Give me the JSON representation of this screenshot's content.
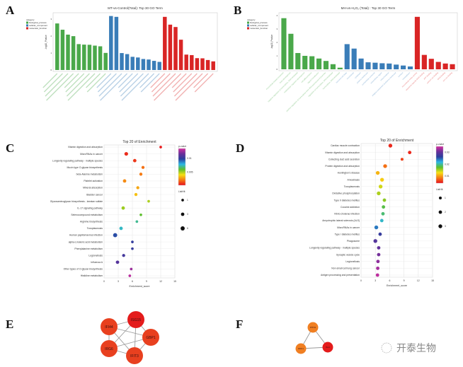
{
  "panels": {
    "A": "A",
    "B": "B",
    "C": "C",
    "D": "D",
    "E": "E",
    "F": "F"
  },
  "colors": {
    "biological_process": "#4aa84a",
    "cellular_component": "#3a7db8",
    "molecular_function": "#d92525"
  },
  "watermark": "开泰生物",
  "chart_data": [
    {
      "id": "A",
      "type": "bar",
      "title": "MT-vs-Control(Total): Top 30 GO Term",
      "ylabel": "-log10_Pvalue",
      "ylim": [
        0,
        3.3
      ],
      "yticks": [
        0,
        1,
        2,
        3
      ],
      "legend": {
        "title": "category",
        "placement": "top-left",
        "entries": [
          "biological_process",
          "cellular_component",
          "molecular_function"
        ]
      },
      "series": [
        {
          "name": "biological_process",
          "values": [
            2.75,
            2.38,
            2.09,
            2.0,
            1.53,
            1.5,
            1.49,
            1.44,
            1.4,
            1.01
          ]
        },
        {
          "name": "cellular_component",
          "values": [
            3.19,
            3.14,
            1.0,
            0.94,
            0.78,
            0.74,
            0.65,
            0.62,
            0.54,
            0.48
          ]
        },
        {
          "name": "molecular_function",
          "values": [
            3.14,
            2.68,
            2.54,
            1.79,
            0.91,
            0.88,
            0.7,
            0.69,
            0.59,
            0.51
          ]
        }
      ]
    },
    {
      "id": "B",
      "type": "bar",
      "title": "MH-vs-H₂O₂ (Total) : Top 30 GO Term",
      "ylabel": "-log10_Pvalue",
      "ylim": [
        0,
        4.1
      ],
      "yticks": [
        0,
        1,
        2,
        3,
        4
      ],
      "legend": {
        "title": "category",
        "placement": "top-left",
        "entries": [
          "biological_process",
          "cellular_component",
          "molecular_function"
        ]
      },
      "series": [
        {
          "name": "biological_process",
          "values": [
            3.8,
            2.64,
            1.21,
            1.0,
            0.97,
            0.8,
            0.62,
            0.38,
            0.12
          ],
          "categories": [
            "microtubule-based movement",
            "brain development",
            "negative regulation of transcription, DNA-templated",
            "multicellular organism development",
            "cell differentiation",
            "signal transduction",
            "positive regulation of transcription from RNA polymerase II promoter",
            "regulation of transcription, DNA-templated",
            "transcription, DNA-templated"
          ]
        },
        {
          "name": "cellular_component",
          "values": [
            1.87,
            1.54,
            0.8,
            0.52,
            0.49,
            0.45,
            0.43,
            0.35,
            0.28,
            0.21
          ],
          "categories": [
            "neuronal cell body",
            "microtubule",
            "cytoplasm",
            "plasma membrane",
            "extracellular exosome",
            "extracellular region",
            "mitochondrion",
            "integral component of plasma membrane",
            "nucleus",
            "nucleoplasm"
          ]
        },
        {
          "name": "molecular_function",
          "values": [
            3.9,
            1.07,
            0.78,
            0.55,
            0.43,
            0.38
          ],
          "categories": [
            "microtubule motor activity",
            "sequence-specific DNA binding",
            "ATP binding",
            "calcium ion binding",
            "DNA binding",
            "zinc ion binding"
          ]
        }
      ]
    },
    {
      "id": "C",
      "type": "scatter",
      "title": "Top 20 of  Enrichment",
      "xlabel": "Enrichment_score",
      "xlim": [
        0,
        15
      ],
      "xticks": [
        0,
        3,
        6,
        9,
        12,
        15
      ],
      "grid": true,
      "color_legend": {
        "title": "p-value",
        "range": [
          0.0003,
          0.0135
        ],
        "ticks": [
          0.005,
          0.01
        ]
      },
      "size_legend": {
        "title": "ListHit",
        "values": [
          1,
          3,
          6
        ]
      },
      "points": [
        {
          "term": "Vitamin digestion and absorption",
          "x": 12.0,
          "p": 0.0005,
          "hits": 1
        },
        {
          "term": "MicroRNAs in cancer",
          "x": 4.7,
          "p": 0.0008,
          "hits": 4
        },
        {
          "term": "Longevity regulating pathway - multiple species",
          "x": 6.5,
          "p": 0.001,
          "hits": 3
        },
        {
          "term": "Mucin type O-glycan biosynthesis",
          "x": 8.25,
          "p": 0.002,
          "hits": 2
        },
        {
          "term": "beta-Alanine metabolism",
          "x": 7.8,
          "p": 0.0022,
          "hits": 2
        },
        {
          "term": "Platelet activation",
          "x": 4.35,
          "p": 0.0025,
          "hits": 3
        },
        {
          "term": "Mineral absorption",
          "x": 7.15,
          "p": 0.003,
          "hits": 2
        },
        {
          "term": "Bladder cancer",
          "x": 6.75,
          "p": 0.0035,
          "hits": 2
        },
        {
          "term": "Glycosaminoglycan biosynthesis - keratan sulfate",
          "x": 9.45,
          "p": 0.005,
          "hits": 1
        },
        {
          "term": "IL-17 signaling pathway",
          "x": 4.05,
          "p": 0.0052,
          "hits": 3
        },
        {
          "term": "Selenocompound metabolism",
          "x": 7.8,
          "p": 0.006,
          "hits": 1
        },
        {
          "term": "Arginine biosynthesis",
          "x": 6.95,
          "p": 0.007,
          "hits": 1
        },
        {
          "term": "Toxoplasmosis",
          "x": 3.6,
          "p": 0.0075,
          "hits": 3
        },
        {
          "term": "Human papillomavirus infection",
          "x": 2.35,
          "p": 0.0095,
          "hits": 6
        },
        {
          "term": "alpha-Linolenic acid metabolism",
          "x": 6.0,
          "p": 0.01,
          "hits": 1
        },
        {
          "term": "Phenylalanine metabolism",
          "x": 6.0,
          "p": 0.0101,
          "hits": 1
        },
        {
          "term": "Legionellosis",
          "x": 4.15,
          "p": 0.0105,
          "hits": 2
        },
        {
          "term": "Influenza A",
          "x": 2.85,
          "p": 0.011,
          "hits": 3
        },
        {
          "term": "Other types of O-glycan biosynthesis",
          "x": 5.75,
          "p": 0.0125,
          "hits": 1
        },
        {
          "term": "Histidine metabolism",
          "x": 5.45,
          "p": 0.013,
          "hits": 1
        }
      ]
    },
    {
      "id": "D",
      "type": "scatter",
      "title": "Top 20 of  Enrichment",
      "xlabel": "Enrichment_score",
      "xlim": [
        0,
        15
      ],
      "xticks": [
        0,
        3,
        6,
        9,
        12,
        15
      ],
      "grid": true,
      "color_legend": {
        "title": "p-value",
        "range": [
          0.004,
          0.035
        ],
        "ticks": [
          0.01,
          0.02,
          0.03
        ]
      },
      "size_legend": {
        "title": "ListHit",
        "values": [
          1,
          2,
          3
        ]
      },
      "points": [
        {
          "term": "Cardiac muscle contraction",
          "x": 6.15,
          "p": 0.005,
          "hits": 3
        },
        {
          "term": "Vitamin digestion and absorption",
          "x": 10.2,
          "p": 0.005,
          "hits": 2
        },
        {
          "term": "Collecting duct acid secretion",
          "x": 8.6,
          "p": 0.006,
          "hits": 1
        },
        {
          "term": "Protein digestion and absorption",
          "x": 5.05,
          "p": 0.008,
          "hits": 3
        },
        {
          "term": "Huntington's disease",
          "x": 3.5,
          "p": 0.011,
          "hits": 3
        },
        {
          "term": "Amoebiasis",
          "x": 4.4,
          "p": 0.012,
          "hits": 3
        },
        {
          "term": "Toxoplasmosis",
          "x": 4.1,
          "p": 0.014,
          "hits": 3
        },
        {
          "term": "Oxidative phosphorylation",
          "x": 3.7,
          "p": 0.015,
          "hits": 3
        },
        {
          "term": "Type II diabetes mellitus",
          "x": 4.9,
          "p": 0.016,
          "hits": 2
        },
        {
          "term": "Cocaine addiction",
          "x": 4.7,
          "p": 0.018,
          "hits": 2
        },
        {
          "term": "Vibrio cholerae infection",
          "x": 4.6,
          "p": 0.019,
          "hits": 2
        },
        {
          "term": "Amyotrophic lateral sclerosis (ALS)",
          "x": 4.35,
          "p": 0.021,
          "hits": 2
        },
        {
          "term": "MicroRNAs in cancer",
          "x": 3.2,
          "p": 0.024,
          "hits": 3
        },
        {
          "term": "Type I diabetes mellitus",
          "x": 4.0,
          "p": 0.027,
          "hits": 2
        },
        {
          "term": "Phagosome",
          "x": 3.0,
          "p": 0.029,
          "hits": 3
        },
        {
          "term": "Longevity regulating pathway - multiple species",
          "x": 3.7,
          "p": 0.03,
          "hits": 2
        },
        {
          "term": "Synaptic vesicle cycle",
          "x": 3.7,
          "p": 0.031,
          "hits": 2
        },
        {
          "term": "Legionellosis",
          "x": 3.55,
          "p": 0.032,
          "hits": 2
        },
        {
          "term": "Non-small cell lung cancer",
          "x": 3.5,
          "p": 0.033,
          "hits": 2
        },
        {
          "term": "Antigen processing and presentation",
          "x": 3.45,
          "p": 0.034,
          "hits": 2
        }
      ]
    }
  ],
  "networks": [
    {
      "id": "E",
      "nodes": [
        {
          "name": "ISG15",
          "color": "#e41b1b"
        },
        {
          "name": "IFI44",
          "color": "#e8401f"
        },
        {
          "name": "GBP1",
          "color": "#e8401f"
        },
        {
          "name": "IRG6",
          "color": "#e8401f"
        },
        {
          "name": "IFIT3",
          "color": "#e8401f"
        }
      ],
      "edges": [
        [
          "ISG15",
          "IFI44"
        ],
        [
          "ISG15",
          "GBP1"
        ],
        [
          "ISG15",
          "IRG6"
        ],
        [
          "ISG15",
          "IFIT3"
        ],
        [
          "IFI44",
          "GBP1"
        ],
        [
          "IFI44",
          "IRG6"
        ],
        [
          "IFI44",
          "IFIT3"
        ],
        [
          "GBP1",
          "IRG6"
        ],
        [
          "GBP1",
          "IFIT3"
        ],
        [
          "IRG6",
          "IFIT3"
        ]
      ]
    },
    {
      "id": "F",
      "nodes": [
        {
          "name": "PITX2",
          "color": "#f07f22"
        },
        {
          "name": "DKK1",
          "color": "#f07f22"
        },
        {
          "name": "ISL1",
          "color": "#e41b1b"
        }
      ],
      "edges": [
        [
          "PITX2",
          "DKK1"
        ],
        [
          "PITX2",
          "ISL1"
        ],
        [
          "DKK1",
          "ISL1"
        ]
      ]
    }
  ]
}
